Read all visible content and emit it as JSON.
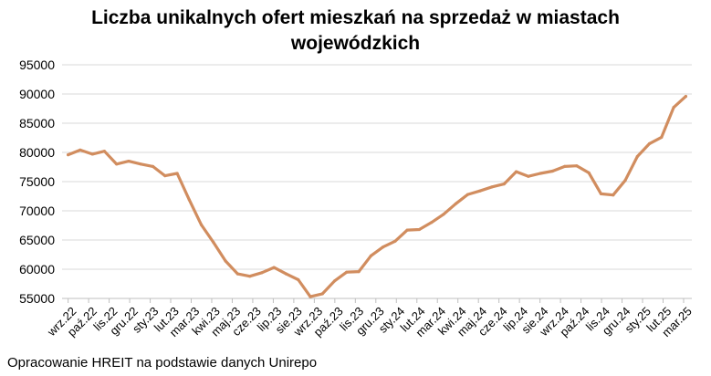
{
  "chart_data": {
    "type": "line",
    "title_lines": [
      "Liczba unikalnych ofert mieszkań na sprzedaż w miastach",
      "wojewódzkich"
    ],
    "xlabel": "",
    "ylabel": "",
    "ylim": [
      55000,
      95000
    ],
    "yticks": [
      "95000",
      "90000",
      "85000",
      "80000",
      "75000",
      "70000",
      "65000",
      "60000",
      "55000"
    ],
    "xtick_labels": [
      "wrz.22",
      "paź.22",
      "lis.22",
      "gru.22",
      "sty.23",
      "lut.23",
      "mar.23",
      "kwi.23",
      "maj.23",
      "cze.23",
      "lip.23",
      "sie.23",
      "wrz.23",
      "paź.23",
      "lis.23",
      "gru.23",
      "sty.24",
      "lut.24",
      "mar.24",
      "kwi.24",
      "maj.24",
      "cze.24",
      "lip.24",
      "sie.24",
      "wrz.24",
      "paź.24",
      "lis.24",
      "gru.24",
      "sty.25",
      "lut.25",
      "mar.25"
    ],
    "grid": true,
    "color": "#d18d5f",
    "series": [
      {
        "values": [
          79600,
          80400,
          79700,
          80200,
          78000,
          78500,
          78000,
          77600,
          76000,
          76400,
          71900,
          67600,
          64600,
          61400,
          59200,
          58800,
          59400,
          60300,
          59200,
          58200,
          55300,
          55800,
          58000,
          59500,
          59600,
          62300,
          63800,
          64800,
          66700,
          66800,
          68000,
          69400,
          71200,
          72800,
          73400,
          74100,
          74600,
          76700,
          75900,
          76400,
          76800,
          77600,
          77700,
          76500,
          72900,
          72700,
          75200,
          79300,
          81500,
          82600,
          87700,
          89600
        ]
      }
    ]
  },
  "source": "Opracowanie HREIT na podstawie danych Unirepo"
}
